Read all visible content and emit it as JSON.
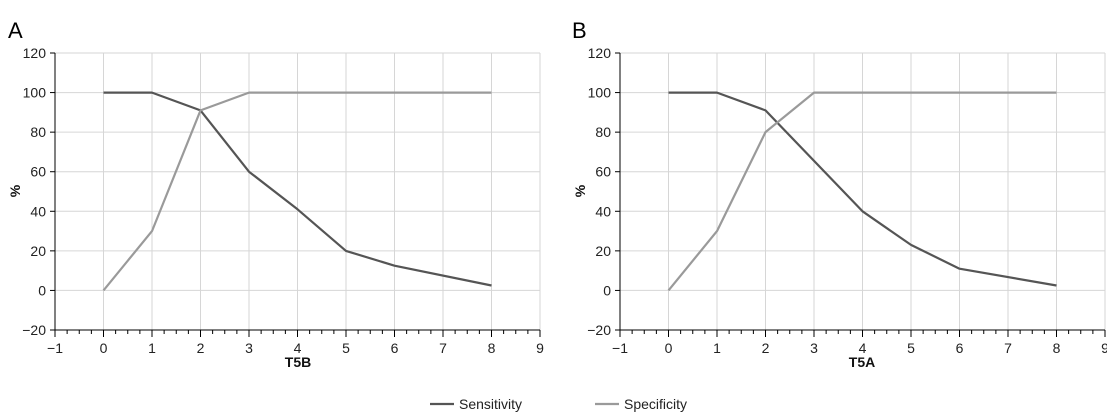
{
  "chart_data": [
    {
      "type": "line",
      "panel": "A",
      "xlabel": "T5B",
      "ylabel": "%",
      "xlim": [
        -1,
        9
      ],
      "ylim": [
        -20,
        120
      ],
      "xticks": [
        -1,
        0,
        1,
        2,
        3,
        4,
        5,
        6,
        7,
        8,
        9
      ],
      "yticks": [
        -20,
        0,
        20,
        40,
        60,
        80,
        100,
        120
      ],
      "grid": true,
      "series": [
        {
          "name": "Sensitivity",
          "color": "#555555",
          "x": [
            0,
            1,
            2,
            3,
            4,
            5,
            6,
            8
          ],
          "y": [
            100,
            100,
            91,
            60,
            41,
            20,
            12.5,
            2.5
          ]
        },
        {
          "name": "Specificity",
          "color": "#9a9a9a",
          "x": [
            0,
            1,
            2,
            3,
            4,
            5,
            6,
            8
          ],
          "y": [
            0,
            30,
            91,
            100,
            100,
            100,
            100,
            100
          ]
        }
      ]
    },
    {
      "type": "line",
      "panel": "B",
      "xlabel": "T5A",
      "ylabel": "%",
      "xlim": [
        -1,
        9
      ],
      "ylim": [
        -20,
        120
      ],
      "xticks": [
        -1,
        0,
        1,
        2,
        3,
        4,
        5,
        6,
        7,
        8,
        9
      ],
      "yticks": [
        -20,
        0,
        20,
        40,
        60,
        80,
        100,
        120
      ],
      "grid": true,
      "series": [
        {
          "name": "Sensitivity",
          "color": "#555555",
          "x": [
            0,
            1,
            2,
            4,
            5,
            6,
            8
          ],
          "y": [
            100,
            100,
            91,
            40,
            23,
            11,
            2.5
          ]
        },
        {
          "name": "Specificity",
          "color": "#9a9a9a",
          "x": [
            0,
            1,
            2,
            3,
            4,
            5,
            6,
            8
          ],
          "y": [
            0,
            30,
            80,
            100,
            100,
            100,
            100,
            100
          ]
        }
      ]
    }
  ],
  "legend": {
    "placement": "bottom-center",
    "items": [
      {
        "name": "Sensitivity",
        "color": "#555555"
      },
      {
        "name": "Specificity",
        "color": "#9a9a9a"
      }
    ]
  }
}
